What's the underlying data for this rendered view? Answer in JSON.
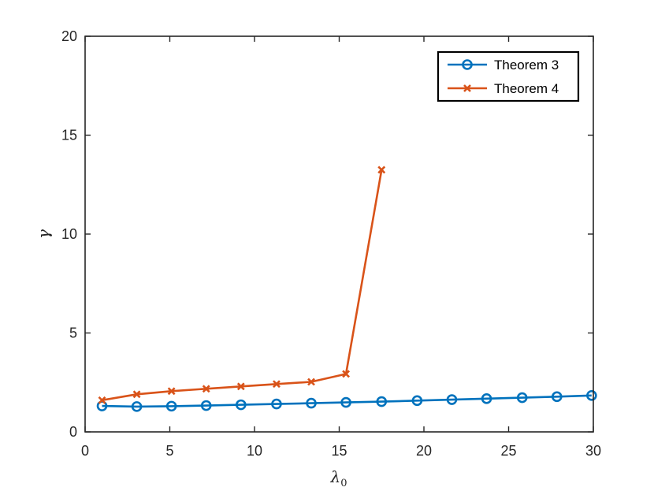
{
  "chart_data": {
    "type": "line",
    "xlabel": "λ",
    "xlabel_sub": "0",
    "ylabel": "γ",
    "xlim": [
      0,
      30
    ],
    "ylim": [
      0,
      20
    ],
    "xticks": [
      0,
      5,
      10,
      15,
      20,
      25,
      30
    ],
    "yticks": [
      0,
      5,
      10,
      15,
      20
    ],
    "grid": false,
    "legend_position": "top-right",
    "series": [
      {
        "name": "Theorem 3",
        "color": "#0072BD",
        "marker": "circle",
        "x": [
          1.0,
          3.05,
          5.1,
          7.15,
          9.2,
          11.3,
          13.35,
          15.4,
          17.5,
          19.6,
          21.65,
          23.7,
          25.8,
          27.85,
          29.9
        ],
        "y": [
          1.31,
          1.28,
          1.3,
          1.33,
          1.37,
          1.41,
          1.45,
          1.49,
          1.53,
          1.58,
          1.63,
          1.68,
          1.73,
          1.78,
          1.84
        ]
      },
      {
        "name": "Theorem 4",
        "color": "#D95319",
        "marker": "x",
        "x": [
          1.0,
          3.05,
          5.1,
          7.15,
          9.2,
          11.3,
          13.35,
          15.4,
          17.5
        ],
        "y": [
          1.6,
          1.9,
          2.06,
          2.18,
          2.3,
          2.42,
          2.53,
          2.93,
          13.25
        ]
      }
    ]
  }
}
